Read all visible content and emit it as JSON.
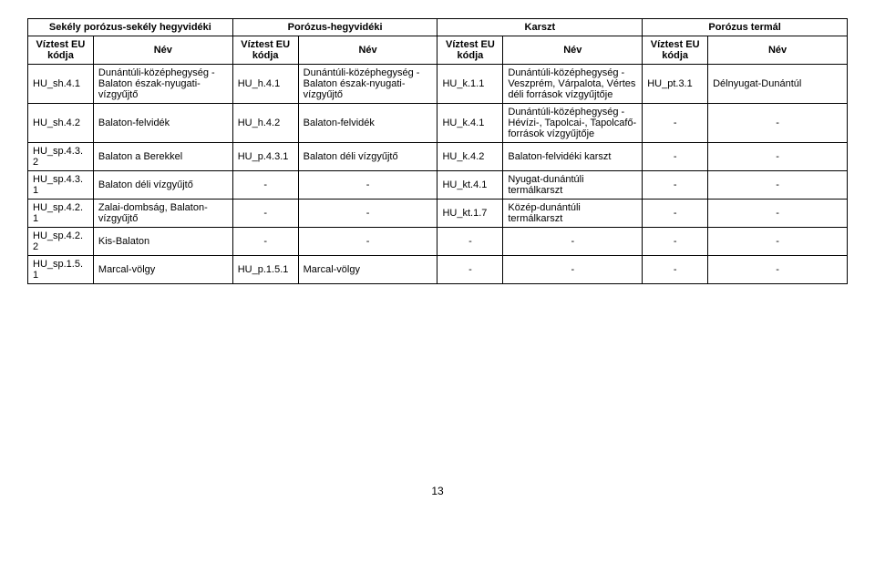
{
  "table": {
    "groups": [
      "Sekély porózus-sekély hegyvidéki",
      "Porózus-hegyvidéki",
      "Karszt",
      "Porózus termál"
    ],
    "subheaders": {
      "code": "Víztest EU kódja",
      "name": "Név"
    },
    "rows": [
      {
        "c1": "HU_sh.4.1",
        "n1": "Dunántúli-középhegység - Balaton észak-nyugati-vízgyűjtő",
        "c2": "HU_h.4.1",
        "n2": "Dunántúli-középhegység - Balaton észak-nyugati-vízgyűjtő",
        "c3": "HU_k.1.1",
        "n3": "Dunántúli-középhegység -Veszprém, Várpalota, Vértes déli források vízgyűjtője",
        "c4": "HU_pt.3.1",
        "n4": "Délnyugat-Dunántúl"
      },
      {
        "c1": "HU_sh.4.2",
        "n1": "Balaton-felvidék",
        "c2": "HU_h.4.2",
        "n2": "Balaton-felvidék",
        "c3": "HU_k.4.1",
        "n3": "Dunántúli-középhegység - Hévízi-, Tapolcai-, Tapolcafő-források vízgyűjtője",
        "c4": "-",
        "n4": "-"
      },
      {
        "c1": "HU_sp.4.3.2",
        "n1": "Balaton a Berekkel",
        "c2": "HU_p.4.3.1",
        "n2": "Balaton déli vízgyűjtő",
        "c3": "HU_k.4.2",
        "n3": "Balaton-felvidéki karszt",
        "c4": "-",
        "n4": "-"
      },
      {
        "c1": "HU_sp.4.3.1",
        "n1": "Balaton déli vízgyűjtő",
        "c2": "-",
        "n2": "-",
        "c3": "HU_kt.4.1",
        "n3": "Nyugat-dunántúli termálkarszt",
        "c4": "-",
        "n4": "-"
      },
      {
        "c1": "HU_sp.4.2.1",
        "n1": "Zalai-dombság, Balaton-vízgyűjtő",
        "c2": "-",
        "n2": "-",
        "c3": "HU_kt.1.7",
        "n3": "Közép-dunántúli termálkarszt",
        "c4": "-",
        "n4": "-"
      },
      {
        "c1": "HU_sp.4.2.2",
        "n1": "Kis-Balaton",
        "c2": "-",
        "n2": "-",
        "c3": "-",
        "n3": "-",
        "c4": "-",
        "n4": "-"
      },
      {
        "c1": "HU_sp.1.5.1",
        "n1": "Marcal-völgy",
        "c2": "HU_p.1.5.1",
        "n2": "Marcal-völgy",
        "c3": "-",
        "n3": "-",
        "c4": "-",
        "n4": "-"
      }
    ]
  },
  "page_number": "13",
  "style": {
    "font_family": "Arial, sans-serif",
    "font_size_pt": 11,
    "text_color": "#000000",
    "background_color": "#ffffff",
    "border_color": "#000000"
  }
}
